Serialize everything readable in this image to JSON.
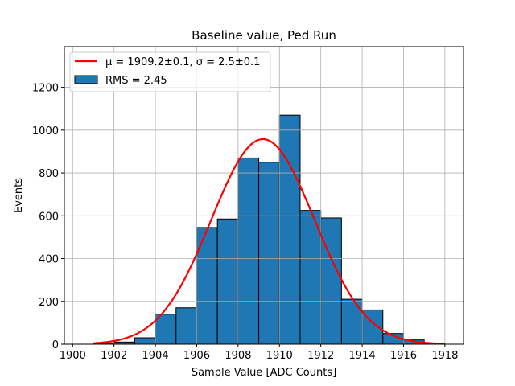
{
  "chart_data": {
    "type": "bar",
    "title": "Baseline value, Ped Run",
    "xlabel": "Sample Value [ADC Counts]",
    "ylabel": "Events",
    "xlim": [
      1899.6,
      1918.9
    ],
    "ylim": [
      0,
      1390
    ],
    "grid": true,
    "legend_placement": "top-left",
    "xticks": [
      1900,
      1902,
      1904,
      1906,
      1908,
      1910,
      1912,
      1914,
      1916,
      1918
    ],
    "yticks": [
      0,
      200,
      400,
      600,
      800,
      1000,
      1200
    ],
    "bin_edges": [
      1900.0,
      1901.0,
      1902.0,
      1903.0,
      1904.0,
      1905.0,
      1906.0,
      1907.0,
      1908.0,
      1909.0,
      1910.0,
      1911.0,
      1912.0,
      1913.0,
      1914.0,
      1915.0,
      1916.0,
      1917.0,
      1918.0
    ],
    "histogram_counts": [
      0,
      3,
      10,
      30,
      140,
      170,
      545,
      585,
      870,
      850,
      1070,
      625,
      590,
      210,
      160,
      50,
      20,
      3
    ],
    "fit": {
      "type": "gaussian",
      "mu": 1909.2,
      "sigma": 2.5,
      "peak": 958,
      "x_range": [
        1901.0,
        1918.0
      ],
      "color": "#ff0000"
    },
    "bar_color": "#1f77b4",
    "bar_edge_color": "#000000",
    "legend": [
      {
        "label": "μ = 1909.2±0.1, σ = 2.5±0.1",
        "kind": "line",
        "color": "#ff0000"
      },
      {
        "label": "RMS = 2.45",
        "kind": "patch",
        "color": "#1f77b4"
      }
    ]
  }
}
